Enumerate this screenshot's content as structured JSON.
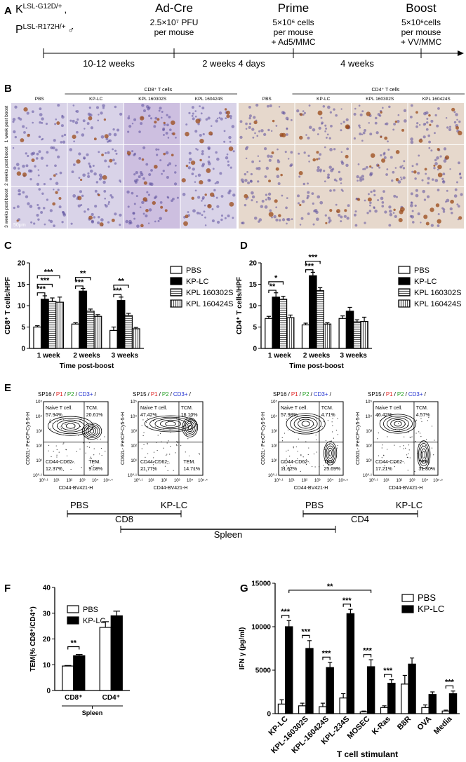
{
  "panel_a": {
    "label": "A",
    "mouse": [
      {
        "base": "K",
        "sup": "LSL-G12D/+",
        "tail": ","
      },
      {
        "base": "P",
        "sup": "LSL-R172H/+",
        "tail": "♂"
      }
    ],
    "events": [
      {
        "title": "Ad-Cre",
        "lines": [
          "2.5×10⁷ PFU",
          "per mouse"
        ]
      },
      {
        "title": "Prime",
        "lines": [
          "5×10⁶ cells",
          "per mouse",
          "+ Ad5/MMC"
        ]
      },
      {
        "title": "Boost",
        "lines": [
          "5×10⁶cells",
          "per mouse",
          "+ VV/MMC"
        ]
      }
    ],
    "intervals": [
      "10-12 weeks",
      "2 weeks 4 days",
      "4 weeks"
    ]
  },
  "panel_b": {
    "label": "B",
    "groups": [
      "CD8⁺ T cells",
      "CD4⁺ T cells"
    ],
    "columns": [
      "PBS",
      "KP-LC",
      "KPL 160302S",
      "KPL 160424S"
    ],
    "rows": [
      "1 week post boost",
      "2 weeks post boost",
      "3 weeks post boost"
    ],
    "scale_bar": "50μm"
  },
  "panel_e": {
    "label": "E",
    "xlabel": "CD44-BV421-H",
    "ylabel": "CD62L- PerCP-Cy5-5-H",
    "yticks": [
      "10⁰·¹",
      "10¹",
      "10²",
      "10³",
      "10⁴",
      "10⁵"
    ],
    "plots": [
      {
        "gate": [
          {
            "text": "SP16",
            "color": "#000000"
          },
          {
            "text": "/",
            "color": "#000000"
          },
          {
            "text": "P1",
            "color": "#e02020"
          },
          {
            "text": "/",
            "color": "#000000"
          },
          {
            "text": "P2",
            "color": "#20a020"
          },
          {
            "text": "/",
            "color": "#000000"
          },
          {
            "text": "CD3+",
            "color": "#2030d0"
          },
          {
            "text": "/",
            "color": "#000000"
          }
        ],
        "quadrants": [
          {
            "name": "Naive T cell.",
            "pct": "57.94%"
          },
          {
            "name": "TCM.",
            "pct": "20.61%"
          },
          {
            "name": "CD44-CD62-.",
            "pct": "12.37%"
          },
          {
            "name": "TEM.",
            "pct": "9.08%"
          }
        ],
        "xticks": [
          "10⁰·¹",
          "10¹",
          "10²",
          "10³",
          "10⁴",
          "10⁵·⁴"
        ],
        "condition": "PBS"
      },
      {
        "gate": [
          {
            "text": "SP15",
            "color": "#000000"
          },
          {
            "text": "/",
            "color": "#000000"
          },
          {
            "text": "P1",
            "color": "#e02020"
          },
          {
            "text": "/",
            "color": "#000000"
          },
          {
            "text": "P2",
            "color": "#20a020"
          },
          {
            "text": "/",
            "color": "#000000"
          },
          {
            "text": "CD3+",
            "color": "#2030d0"
          },
          {
            "text": "/",
            "color": "#000000"
          }
        ],
        "quadrants": [
          {
            "name": "Naive T cell.",
            "pct": "47.42%"
          },
          {
            "name": "TCM.",
            "pct": "16.10%"
          },
          {
            "name": "CD44-CD62-.",
            "pct": "21.77%"
          },
          {
            "name": "TEM.",
            "pct": "14.71%"
          }
        ],
        "xticks": [
          "10⁰·¹",
          "10¹",
          "10²",
          "10³",
          "10⁴",
          "10⁵·⁴"
        ],
        "condition": "KP-LC"
      },
      {
        "gate": [
          {
            "text": "SP16",
            "color": "#000000"
          },
          {
            "text": "/",
            "color": "#000000"
          },
          {
            "text": "P1",
            "color": "#e02020"
          },
          {
            "text": "/",
            "color": "#000000"
          },
          {
            "text": "P2",
            "color": "#20a020"
          },
          {
            "text": "/",
            "color": "#000000"
          },
          {
            "text": "CD3+",
            "color": "#2030d0"
          },
          {
            "text": "/",
            "color": "#000000"
          }
        ],
        "quadrants": [
          {
            "name": "Naive T cell.",
            "pct": "57.98%"
          },
          {
            "name": "TCM.",
            "pct": "4.71%"
          },
          {
            "name": "CD44-CD62-.",
            "pct": "11.62%"
          },
          {
            "name": "TEM.",
            "pct": "25.69%"
          }
        ],
        "xticks": [
          "10⁰·¹",
          "10¹",
          "10²",
          "10³",
          "10⁴",
          "10⁵·⁵"
        ],
        "condition": "PBS"
      },
      {
        "gate": [
          {
            "text": "SP15",
            "color": "#000000"
          },
          {
            "text": "/",
            "color": "#000000"
          },
          {
            "text": "P1",
            "color": "#e02020"
          },
          {
            "text": "/",
            "color": "#000000"
          },
          {
            "text": "P2",
            "color": "#20a020"
          },
          {
            "text": "/",
            "color": "#000000"
          },
          {
            "text": "CD3+",
            "color": "#2030d0"
          },
          {
            "text": "/",
            "color": "#000000"
          }
        ],
        "quadrants": [
          {
            "name": "Naive T cell.",
            "pct": "46.42%"
          },
          {
            "name": "TCM.",
            "pct": "4.57%"
          },
          {
            "name": "CD44-CD62-.",
            "pct": "17.21%"
          },
          {
            "name": "TEM.",
            "pct": "31.80%"
          }
        ],
        "xticks": [
          "10⁰·¹",
          "10¹",
          "10²",
          "10³",
          "10⁴",
          "10⁵·⁵"
        ],
        "condition": "KP-LC"
      }
    ],
    "brackets": [
      "CD8",
      "CD4",
      "Spleen"
    ]
  },
  "chart_data": [
    {
      "type": "bar",
      "panel": "C",
      "ylabel": "CD8⁺ T cells/HPF",
      "xlabel": "Time post-boost",
      "categories": [
        "1 week",
        "2 weeks",
        "3 weeks"
      ],
      "series": [
        {
          "name": "PBS",
          "color": "#ffffff",
          "values": [
            5,
            5.7,
            4.2
          ],
          "errors": [
            0.3,
            0.3,
            0.8
          ]
        },
        {
          "name": "KP-LC",
          "color": "#000000",
          "values": [
            11.5,
            13.4,
            11.2
          ],
          "errors": [
            0.8,
            0.6,
            0.8
          ]
        },
        {
          "name": "KPL 160302S",
          "color": "#555555",
          "hatch": "horizontal",
          "values": [
            11,
            8.7,
            7.7
          ],
          "errors": [
            0.8,
            0.5,
            0.5
          ]
        },
        {
          "name": "KPL 160424S",
          "color": "#555555",
          "hatch": "vertical",
          "values": [
            10.8,
            7.5,
            4.6
          ],
          "errors": [
            1.2,
            0.4,
            0.3
          ]
        }
      ],
      "ylim": [
        0,
        20
      ],
      "yticks": [
        0,
        5,
        10,
        15,
        20
      ],
      "legend": "right",
      "annotations": [
        "***",
        "***",
        "***",
        "***",
        "**",
        "***",
        "**"
      ]
    },
    {
      "type": "bar",
      "panel": "D",
      "ylabel": "CD4⁺ T cells/HPF",
      "xlabel": "Time post-boost",
      "categories": [
        "1 week",
        "2 weeks",
        "3 weeks"
      ],
      "series": [
        {
          "name": "PBS",
          "color": "#ffffff",
          "values": [
            7,
            5.5,
            7
          ],
          "errors": [
            0.5,
            0.4,
            0.6
          ]
        },
        {
          "name": "KP-LC",
          "color": "#000000",
          "values": [
            12,
            17,
            8.7
          ],
          "errors": [
            1,
            0.8,
            0.9
          ]
        },
        {
          "name": "KPL 160302S",
          "color": "#555555",
          "hatch": "horizontal",
          "values": [
            11.5,
            13.5,
            6.2
          ],
          "errors": [
            0.7,
            0.7,
            0.5
          ]
        },
        {
          "name": "KPL 160424S",
          "color": "#555555",
          "hatch": "vertical",
          "values": [
            7.2,
            5.7,
            6.3
          ],
          "errors": [
            0.6,
            0.3,
            1
          ]
        }
      ],
      "ylim": [
        0,
        20
      ],
      "yticks": [
        0,
        5,
        10,
        15,
        20
      ],
      "legend": "right",
      "annotations": [
        "**",
        "*",
        "***",
        "***"
      ]
    },
    {
      "type": "bar",
      "panel": "F",
      "ylabel": "TEM(% CD8⁺/CD4⁺)",
      "xgroup": "Spleen",
      "categories": [
        "CD8⁺",
        "CD4⁺"
      ],
      "series": [
        {
          "name": "PBS",
          "color": "#ffffff",
          "values": [
            9.5,
            24.5
          ],
          "errors": [
            0.2,
            2.2
          ]
        },
        {
          "name": "KP-LC",
          "color": "#000000",
          "values": [
            13.5,
            29
          ],
          "errors": [
            0.5,
            1.8
          ]
        }
      ],
      "ylim": [
        0,
        40
      ],
      "yticks": [
        0,
        10,
        20,
        30,
        40
      ],
      "legend": "upper left",
      "annotations": [
        "**"
      ]
    },
    {
      "type": "bar",
      "panel": "G",
      "ylabel": "IFN γ  (pg/ml)",
      "xlabel": "T cell stimulant",
      "xtick_rotation": 45,
      "categories": [
        "KP-LC",
        "KPL-160302S",
        "KPL-160424S",
        "KPL-234S",
        "MOSEC",
        "K-Ras",
        "B8R",
        "OVA",
        "Media"
      ],
      "series": [
        {
          "name": "PBS",
          "color": "#ffffff",
          "values": [
            1100,
            900,
            800,
            1800,
            200,
            700,
            3400,
            700,
            300
          ],
          "errors": [
            500,
            300,
            400,
            500,
            100,
            200,
            1000,
            300,
            100
          ]
        },
        {
          "name": "KP-LC",
          "color": "#000000",
          "values": [
            10000,
            7500,
            5300,
            11500,
            5400,
            3500,
            5700,
            2200,
            2300
          ],
          "errors": [
            700,
            900,
            600,
            500,
            800,
            400,
            700,
            300,
            300
          ]
        }
      ],
      "ylim": [
        0,
        15000
      ],
      "yticks": [
        0,
        5000,
        10000,
        15000
      ],
      "legend": "upper right",
      "annotations": [
        "**",
        "***",
        "***",
        "***",
        "***",
        "***",
        "***",
        "***"
      ]
    }
  ]
}
